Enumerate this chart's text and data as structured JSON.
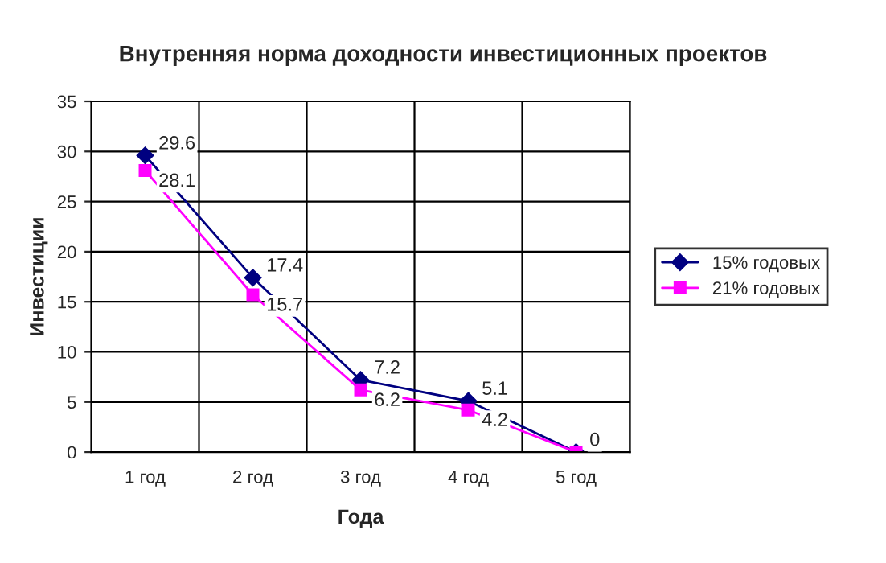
{
  "chart_data": {
    "type": "line",
    "title": "Внутренняя норма доходности инвестиционных проектов",
    "xlabel": "Года",
    "ylabel": "Инвестиции",
    "categories": [
      "1 год",
      "2 год",
      "3 год",
      "4 год",
      "5 год"
    ],
    "series": [
      {
        "name": "15% годовых",
        "color": "#000080",
        "marker": "diamond",
        "values": [
          29.6,
          17.4,
          7.2,
          5.1,
          0
        ],
        "value_labels": [
          "29.6",
          "17.4",
          "7.2",
          "5.1",
          "0"
        ]
      },
      {
        "name": "21% годовых",
        "color": "#ff00ff",
        "marker": "square",
        "values": [
          28.1,
          15.7,
          6.2,
          4.2,
          0
        ],
        "value_labels": [
          "28.1",
          "15.7",
          "6.2",
          "4.2",
          null
        ]
      }
    ],
    "ylim": [
      0,
      35
    ],
    "yticks": [
      0,
      5,
      10,
      15,
      20,
      25,
      30,
      35
    ],
    "grid": true,
    "legend": "right"
  }
}
